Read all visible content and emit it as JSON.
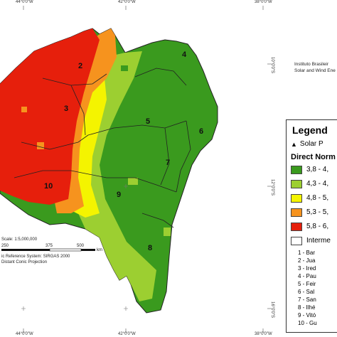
{
  "ticks": {
    "top": [
      "44°0'0\"W",
      "42°0'0\"W",
      "38°0'0\"W"
    ],
    "bottom": [
      "44°0'0\"W",
      "42°0'0\"W",
      "38°0'0\"W"
    ],
    "right": [
      "10°0'0\"S",
      "12°0'0\"S",
      "16°0'0\"S"
    ]
  },
  "institute": {
    "line1": "Instituto Brasileir",
    "line2": "Solar and Wind Ene"
  },
  "regions": [
    {
      "number": "2"
    },
    {
      "number": "3"
    },
    {
      "number": "4"
    },
    {
      "number": "5"
    },
    {
      "number": "6"
    },
    {
      "number": "7"
    },
    {
      "number": "8"
    },
    {
      "number": "9"
    },
    {
      "number": "10"
    }
  ],
  "scale": {
    "title": "Scale: 1:5,000,000",
    "ticks": [
      "250",
      "375",
      "500"
    ],
    "unit": "km",
    "crs_line1": "ic Reference System: SIRGAS 2000",
    "crs_line2": "Distant Conic Projection"
  },
  "legend": {
    "title": "Legend",
    "marker_label": "Solar P",
    "subtitle": "Direct Norm",
    "classes": [
      {
        "label": "3,8 - 4,",
        "color": "#3a9a1e"
      },
      {
        "label": "4,3 - 4,",
        "color": "#9ccf31"
      },
      {
        "label": "4,8 - 5,",
        "color": "#f4f400"
      },
      {
        "label": "5,3 - 5,",
        "color": "#f6931e"
      },
      {
        "label": "5,8 - 6,",
        "color": "#e61f0c"
      }
    ],
    "boundary_label": "Interme",
    "region_list": [
      "1 - Bar",
      "2 - Jua",
      "3 - Ired",
      "4 - Pau",
      "5 - Feir",
      "6 - Sal",
      "7 - San",
      "8 - Ilhé",
      "9 - Vitó",
      "10 - Gu"
    ]
  }
}
